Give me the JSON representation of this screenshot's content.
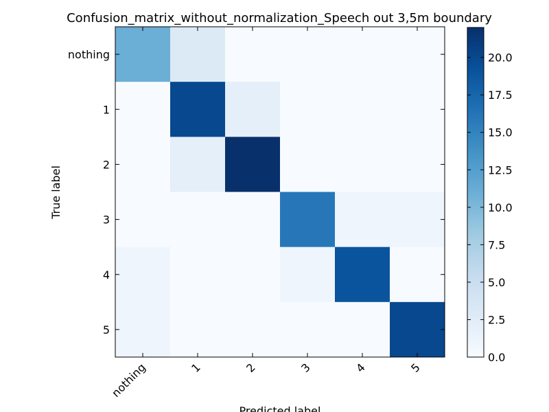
{
  "chart_data": {
    "type": "heatmap",
    "title": "Confusion_matrix_without_normalization_Speech out 3,5m boundary",
    "xlabel": "Predicted label",
    "ylabel": "True label",
    "x_categories": [
      "nothing",
      "1",
      "2",
      "3",
      "4",
      "5"
    ],
    "y_categories": [
      "nothing",
      "1",
      "2",
      "3",
      "4",
      "5"
    ],
    "values": [
      [
        11,
        3,
        0,
        0,
        0,
        0
      ],
      [
        0,
        20,
        2,
        0,
        0,
        0
      ],
      [
        0,
        2,
        22,
        0,
        0,
        0
      ],
      [
        0,
        0,
        0,
        16,
        1,
        1
      ],
      [
        1,
        0,
        0,
        1,
        19,
        0
      ],
      [
        1,
        0,
        0,
        0,
        0,
        20
      ]
    ],
    "colorbar": {
      "colormap": "Blues",
      "range": [
        0,
        22
      ],
      "ticks": [
        0.0,
        2.5,
        5.0,
        7.5,
        10.0,
        12.5,
        15.0,
        17.5,
        20.0
      ],
      "tick_labels": [
        "0.0",
        "2.5",
        "5.0",
        "7.5",
        "10.0",
        "12.5",
        "15.0",
        "17.5",
        "20.0"
      ]
    },
    "grid": false
  }
}
